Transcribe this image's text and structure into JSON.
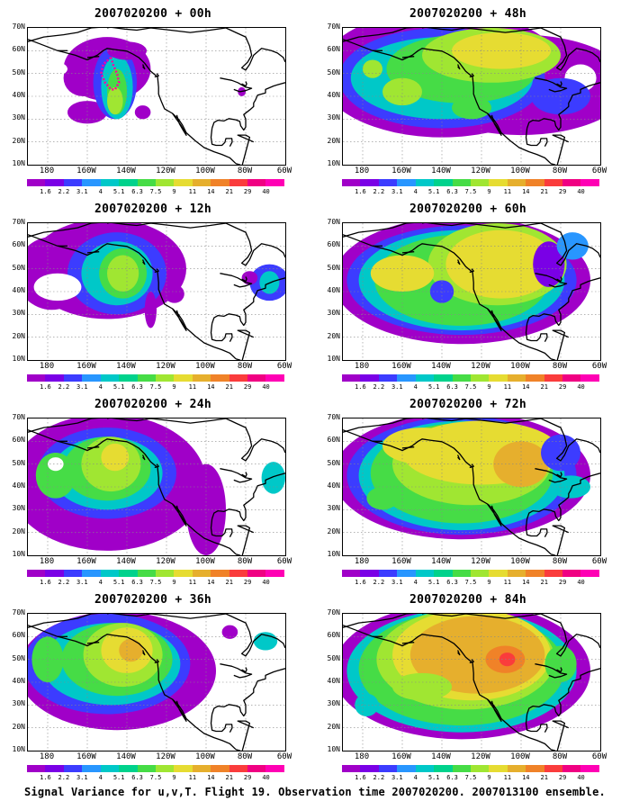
{
  "panels": [
    {
      "title": "2007020200 + 00h"
    },
    {
      "title": "2007020200 + 48h"
    },
    {
      "title": "2007020200 + 12h"
    },
    {
      "title": "2007020200 + 60h"
    },
    {
      "title": "2007020200 + 24h"
    },
    {
      "title": "2007020200 + 72h"
    },
    {
      "title": "2007020200 + 36h"
    },
    {
      "title": "2007020200 + 84h"
    }
  ],
  "lat_labels": [
    "70N",
    "60N",
    "50N",
    "40N",
    "30N",
    "20N",
    "10N"
  ],
  "lon_labels": [
    "180",
    "160W",
    "140W",
    "120W",
    "100W",
    "80W",
    "60W"
  ],
  "colorbar": {
    "labels": [
      "1.6",
      "2.2",
      "3.1",
      "4",
      "5.1",
      "6.3",
      "7.5",
      "9",
      "11",
      "14",
      "21",
      "29",
      "40"
    ],
    "colors": [
      "#a000c8",
      "#7a00e6",
      "#3c3cff",
      "#2896ff",
      "#00c8c8",
      "#00d28c",
      "#46dc46",
      "#a0e632",
      "#e6dc32",
      "#e6af2d",
      "#f08228",
      "#fa3c3c",
      "#f00082",
      "#ff00b4"
    ]
  },
  "caption": "Signal Variance for u,v,T. Flight 19. Observation time 2007020200. 2007013100 ensemble."
}
